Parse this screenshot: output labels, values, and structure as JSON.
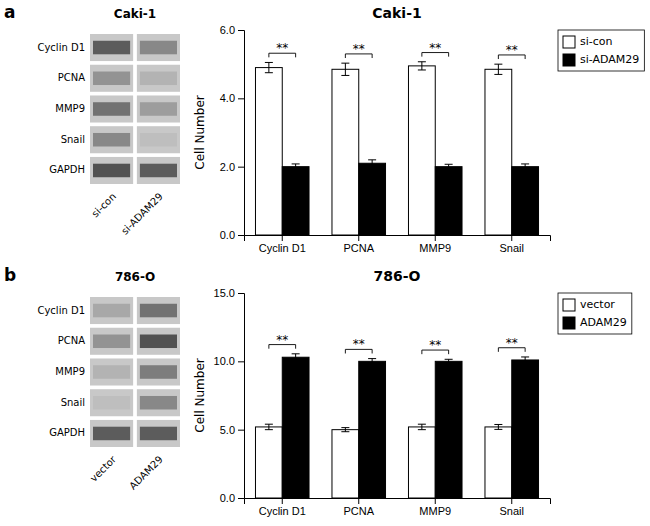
{
  "chart_data": [
    {
      "type": "heatmap",
      "title": "Caki-1",
      "rows": [
        "Cyclin D1",
        "PCNA",
        "MMP9",
        "Snail",
        "GAPDH"
      ],
      "categories": [
        "si-con",
        "si-ADAM29"
      ],
      "values": [
        [
          0.75,
          0.55
        ],
        [
          0.5,
          0.35
        ],
        [
          0.65,
          0.45
        ],
        [
          0.55,
          0.3
        ],
        [
          0.8,
          0.75
        ]
      ],
      "annotations": [
        "a"
      ]
    },
    {
      "type": "bar",
      "title": "Caki-1",
      "categories": [
        "Cyclin D1",
        "PCNA",
        "MMP9",
        "Snail"
      ],
      "series": [
        {
          "name": "si-con",
          "color": "white",
          "values": [
            4.9,
            4.85,
            4.95,
            4.85
          ],
          "errors": [
            0.15,
            0.18,
            0.12,
            0.15
          ]
        },
        {
          "name": "si-ADAM29",
          "color": "black",
          "values": [
            2.0,
            2.1,
            2.0,
            2.0
          ],
          "errors": [
            0.08,
            0.1,
            0.07,
            0.08
          ]
        }
      ],
      "ylabel": "Cell Number",
      "ylim": [
        0,
        6.0
      ],
      "yticks": [
        {
          "value": 0.0,
          "label": "0.0"
        },
        {
          "value": 2.0,
          "label": "2.0"
        },
        {
          "value": 4.0,
          "label": "4.0"
        },
        {
          "value": 6.0,
          "label": "6.0"
        }
      ],
      "legend": "upper right",
      "annotations": [
        "**",
        "**",
        "**",
        "**"
      ]
    },
    {
      "type": "heatmap",
      "title": "786-O",
      "rows": [
        "Cyclin D1",
        "PCNA",
        "MMP9",
        "Snail",
        "GAPDH"
      ],
      "categories": [
        "vector",
        "ADAM29"
      ],
      "values": [
        [
          0.4,
          0.65
        ],
        [
          0.5,
          0.8
        ],
        [
          0.35,
          0.6
        ],
        [
          0.3,
          0.55
        ],
        [
          0.75,
          0.75
        ]
      ],
      "annotations": [
        "b"
      ]
    },
    {
      "type": "bar",
      "title": "786-O",
      "categories": [
        "Cyclin D1",
        "PCNA",
        "MMP9",
        "Snail"
      ],
      "series": [
        {
          "name": "vector",
          "color": "white",
          "values": [
            5.2,
            5.0,
            5.2,
            5.2
          ],
          "errors": [
            0.2,
            0.15,
            0.2,
            0.18
          ]
        },
        {
          "name": "ADAM29",
          "color": "black",
          "values": [
            10.3,
            10.0,
            10.0,
            10.1
          ],
          "errors": [
            0.25,
            0.2,
            0.15,
            0.22
          ]
        }
      ],
      "ylabel": "Cell Number",
      "ylim": [
        0,
        15.0
      ],
      "yticks": [
        {
          "value": 0.0,
          "label": "0.0"
        },
        {
          "value": 5.0,
          "label": "5.0"
        },
        {
          "value": 10.0,
          "label": "10.0"
        },
        {
          "value": 15.0,
          "label": "15.0"
        }
      ],
      "legend": "upper right",
      "annotations": [
        "**",
        "**",
        "**",
        "**"
      ]
    }
  ]
}
